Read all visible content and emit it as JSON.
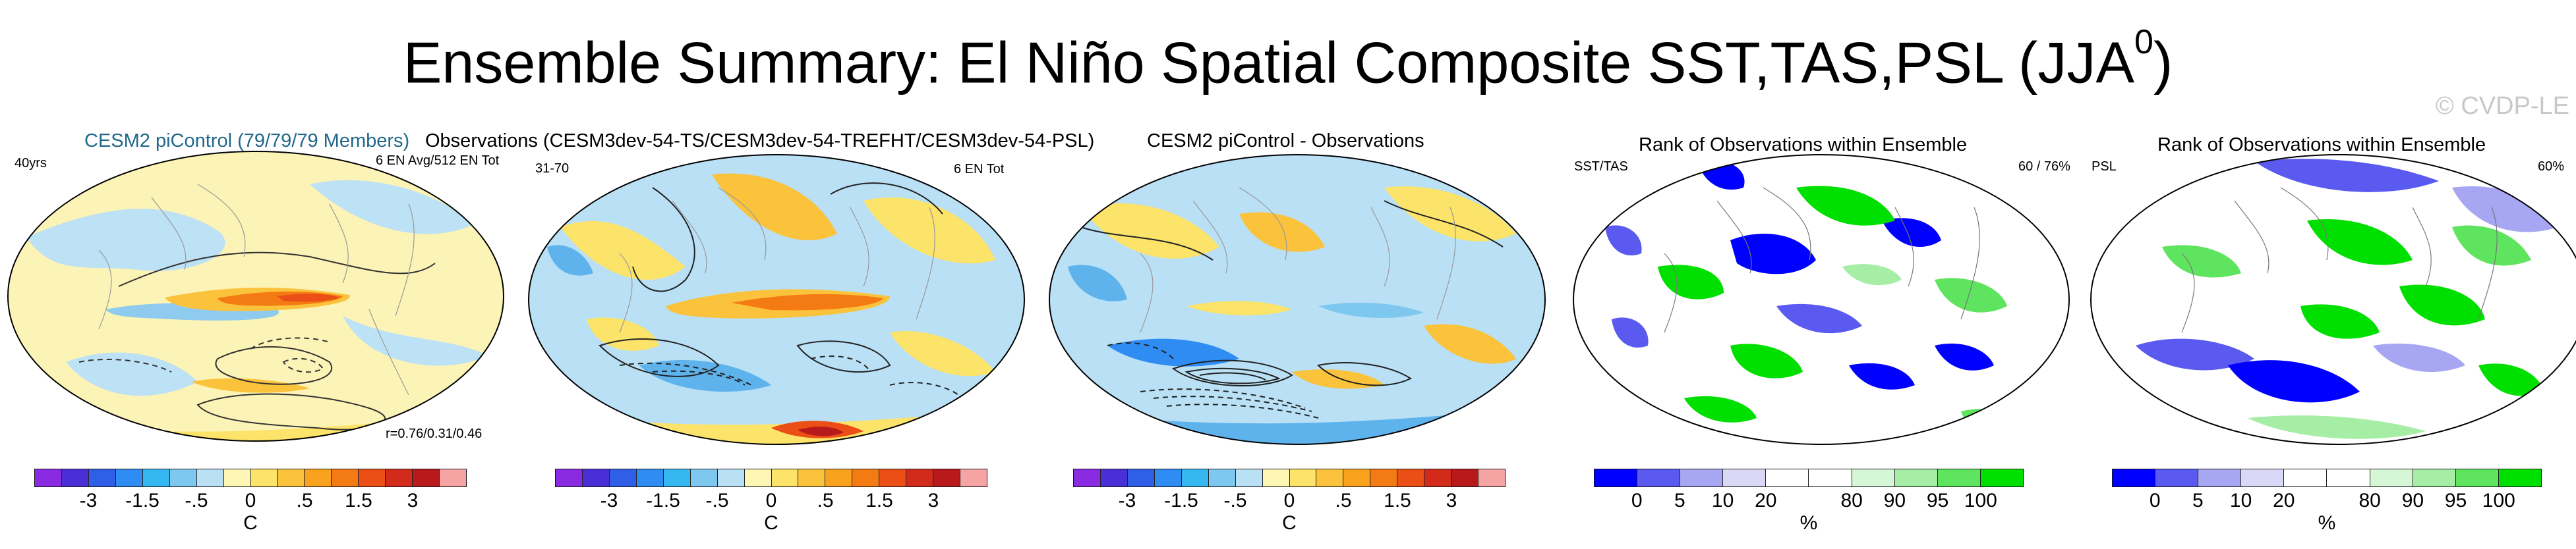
{
  "title": {
    "main": "Ensemble Summary: El Niño Spatial Composite SST,TAS,PSL (JJA",
    "sup": "0",
    "close": ")"
  },
  "credit": "© CVDP-LE",
  "panels": [
    {
      "title": "CESM2 piControl (79/79/79 Members)",
      "left_label": "40yrs",
      "right_label": "6 EN Avg/512 EN Tot",
      "bottom_right": "r=0.76/0.31/0.46",
      "type": "diverging"
    },
    {
      "title": "Observations (CESM3dev-54-TS/CESM3dev-54-TREFHT/CESM3dev-54-PSL)",
      "left_label": "31-70",
      "right_label": "6 EN Tot",
      "type": "diverging"
    },
    {
      "title": "CESM2 piControl - Observations",
      "type": "diverging"
    },
    {
      "title": "Rank of Observations within Ensemble",
      "left_label": "SST/TAS",
      "right_label": "60 /  76%",
      "type": "rank"
    },
    {
      "title": "Rank of Observations within Ensemble",
      "left_label": "PSL",
      "right_label": "60%",
      "type": "rank"
    }
  ],
  "colorbars": {
    "diverging": {
      "colors": [
        "#8a2be2",
        "#4b2fd6",
        "#2f5fe6",
        "#2f8cf2",
        "#35b8f2",
        "#7ec8f0",
        "#b9e0f5",
        "#fdf6b4",
        "#fce36a",
        "#fbc23b",
        "#f9a21e",
        "#f47a14",
        "#ec4f16",
        "#d22b1c",
        "#b81a1c",
        "#f6a3a3"
      ],
      "ticks": [
        "-3",
        "-1.5",
        "-.5",
        "0",
        ".5",
        "1.5",
        "3"
      ],
      "unit": "C"
    },
    "rank": {
      "colors": [
        "#0000ff",
        "#5a5af0",
        "#a6a6f2",
        "#d9d9f7",
        "#ffffff",
        "#ffffff",
        "#d6f7d6",
        "#a6eda6",
        "#5fe45f",
        "#00e000"
      ],
      "ticks": [
        "0",
        "5",
        "10",
        "20",
        "80",
        "90",
        "95",
        "100"
      ],
      "unit": "%"
    }
  }
}
